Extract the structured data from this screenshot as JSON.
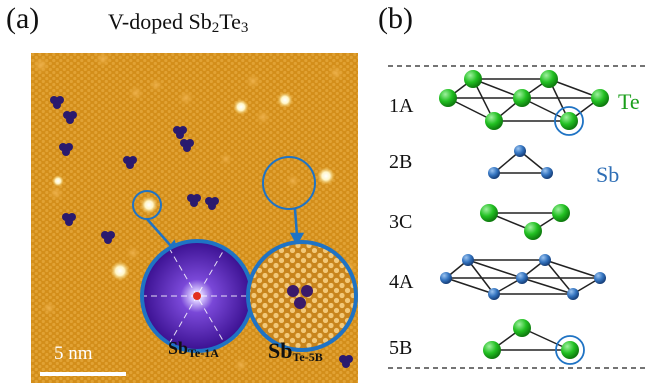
{
  "panel_a": {
    "label": "(a)",
    "title_main": "V-doped Sb",
    "title_sub1": "2",
    "title_mid": "Te",
    "title_sub2": "3",
    "scale_bar": "5 nm",
    "defect_1a_main": "Sb",
    "defect_1a_sub": "Te-1A",
    "defect_5b_main": "Sb",
    "defect_5b_sub": "Te-5B"
  },
  "panel_b": {
    "label": "(b)",
    "layers": [
      "1A",
      "2B",
      "3C",
      "4A",
      "5B"
    ],
    "species_te": "Te",
    "species_sb": "Sb"
  },
  "colors": {
    "te_green": "#1fbf1f",
    "sb_blue": "#2f6fb6",
    "circle_blue": "#1f73c4",
    "stm_gold": "#d9931a",
    "inset_purple": "#4a1aa8"
  }
}
